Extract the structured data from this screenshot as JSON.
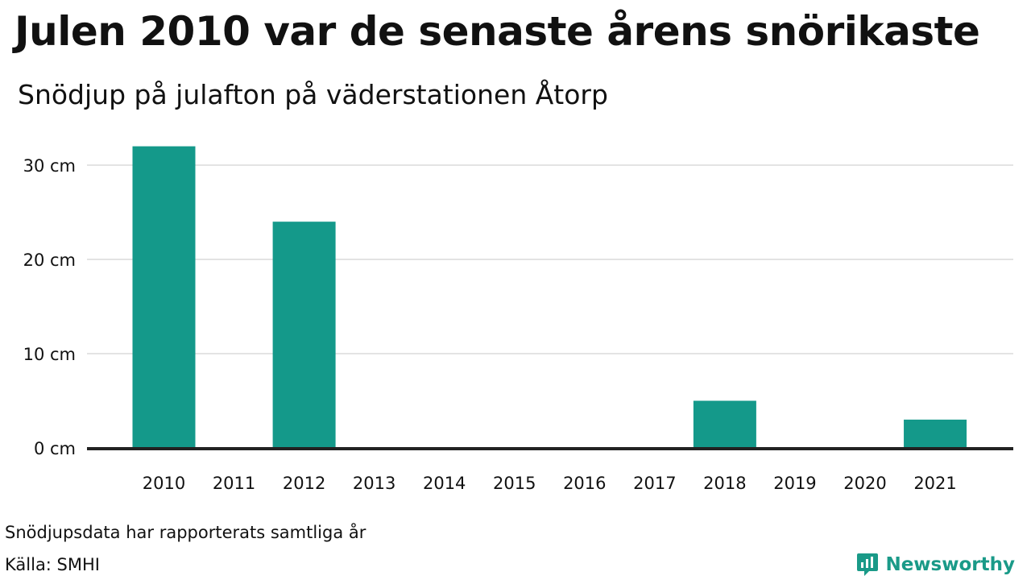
{
  "title": "Julen 2010 var de senaste årens snörikaste",
  "subtitle": "Snödjup på julafton på väderstationen Åtorp",
  "footnote": "Snödjupsdata har rapporterats samtliga år",
  "source": "Källa: SMHI",
  "brand": {
    "name": "Newsworthy",
    "icon": "newsworthy-logo-icon"
  },
  "colors": {
    "bar": "#14998a",
    "grid": "#e3e3e3",
    "axis": "#222222",
    "text": "#111111",
    "brand": "#1a9a88"
  },
  "chart_data": {
    "type": "bar",
    "categories": [
      "2010",
      "2011",
      "2012",
      "2013",
      "2014",
      "2015",
      "2016",
      "2017",
      "2018",
      "2019",
      "2020",
      "2021"
    ],
    "values": [
      32,
      0,
      24,
      0,
      0,
      0,
      0,
      0,
      5,
      0,
      0,
      3
    ],
    "ylim": [
      0,
      30
    ],
    "yticks": [
      0,
      10,
      20,
      30
    ],
    "ytick_labels": [
      "0 cm",
      "10 cm",
      "20 cm",
      "30 cm"
    ],
    "grid": true,
    "legend": false
  }
}
